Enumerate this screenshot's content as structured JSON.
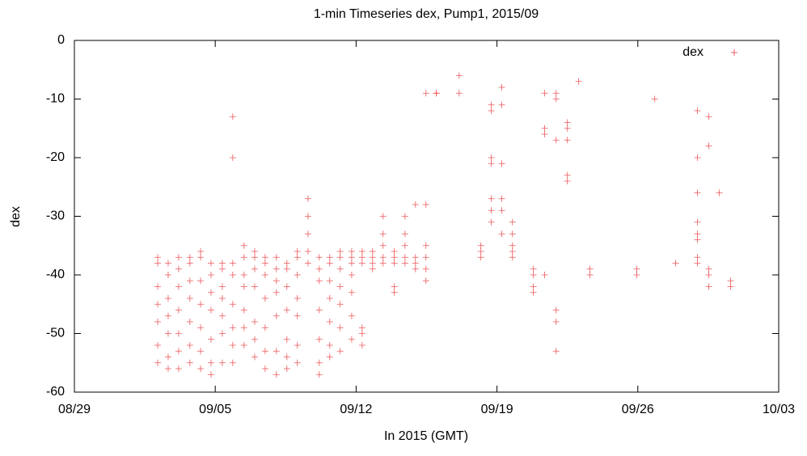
{
  "chart_data": {
    "type": "scatter",
    "title": "1-min Timeseries dex, Pump1, 2015/09",
    "x_label": "In 2015 (GMT)",
    "y_label": "dex",
    "xlim": [
      0,
      35
    ],
    "xticks": [
      {
        "value": 0,
        "label": "08/29"
      },
      {
        "value": 7,
        "label": "09/05"
      },
      {
        "value": 14,
        "label": "09/12"
      },
      {
        "value": 21,
        "label": "09/19"
      },
      {
        "value": 28,
        "label": "09/26"
      },
      {
        "value": 35,
        "label": "10/03"
      }
    ],
    "ylim": [
      -60,
      0
    ],
    "yticks": [
      -60,
      -50,
      -40,
      -30,
      -20,
      -10,
      0
    ],
    "legend": "top-right",
    "series": [
      {
        "name": "dex",
        "color": "#e8383c",
        "x": [
          4.14,
          4.14,
          4.14,
          4.14,
          4.14,
          4.14,
          4.14,
          4.66,
          4.66,
          4.66,
          4.66,
          4.66,
          4.66,
          4.66,
          5.18,
          5.18,
          5.18,
          5.18,
          5.18,
          5.18,
          5.18,
          5.74,
          5.74,
          5.74,
          5.74,
          5.74,
          5.74,
          5.74,
          6.27,
          6.27,
          6.27,
          6.27,
          6.27,
          6.27,
          6.27,
          6.79,
          6.79,
          6.79,
          6.79,
          6.79,
          6.79,
          6.79,
          7.35,
          7.35,
          7.35,
          7.35,
          7.35,
          7.35,
          7.35,
          7.87,
          7.87,
          7.87,
          7.87,
          7.87,
          7.87,
          7.87,
          7.87,
          8.43,
          8.43,
          8.43,
          8.43,
          8.43,
          8.43,
          8.43,
          8.96,
          8.96,
          8.96,
          8.96,
          8.96,
          8.96,
          8.96,
          9.48,
          9.48,
          9.48,
          9.48,
          9.48,
          9.48,
          9.48,
          10.04,
          10.04,
          10.04,
          10.04,
          10.04,
          10.04,
          10.04,
          10.56,
          10.56,
          10.56,
          10.56,
          10.56,
          10.56,
          10.56,
          11.08,
          11.08,
          11.08,
          11.08,
          11.08,
          11.08,
          11.08,
          11.61,
          11.61,
          11.61,
          11.61,
          11.61,
          12.17,
          12.17,
          12.17,
          12.17,
          12.17,
          12.17,
          12.17,
          12.69,
          12.69,
          12.69,
          12.69,
          12.69,
          12.69,
          12.69,
          13.21,
          13.21,
          13.21,
          13.21,
          13.21,
          13.21,
          13.21,
          13.78,
          13.78,
          13.78,
          13.78,
          13.78,
          13.78,
          13.78,
          14.3,
          14.3,
          14.3,
          14.3,
          14.3,
          14.3,
          14.82,
          14.82,
          14.82,
          14.82,
          15.34,
          15.34,
          15.34,
          15.34,
          15.34,
          15.9,
          15.9,
          15.9,
          15.9,
          15.9,
          16.43,
          16.43,
          16.43,
          16.43,
          16.43,
          16.95,
          16.95,
          16.95,
          16.95,
          17.47,
          17.47,
          17.47,
          17.47,
          17.47,
          17.47,
          17.99,
          17.99,
          19.12,
          19.12,
          20.2,
          20.2,
          20.2,
          20.72,
          20.72,
          20.72,
          20.72,
          20.72,
          20.72,
          20.72,
          21.24,
          21.24,
          21.24,
          21.24,
          21.24,
          21.24,
          21.77,
          21.77,
          21.77,
          21.77,
          21.77,
          22.81,
          22.81,
          22.81,
          22.81,
          23.37,
          23.37,
          23.37,
          23.37,
          23.94,
          23.94,
          23.94,
          23.94,
          23.94,
          23.94,
          24.5,
          24.5,
          24.5,
          24.5,
          24.5,
          25.06,
          25.62,
          25.62,
          27.95,
          27.95,
          28.84,
          29.88,
          30.96,
          30.96,
          30.96,
          30.96,
          30.96,
          30.96,
          30.96,
          30.96,
          31.53,
          31.53,
          31.53,
          31.53,
          31.53,
          32.05,
          32.61,
          32.61
        ],
        "values": [
          -37,
          -38,
          -42,
          -45,
          -48,
          -52,
          -55,
          -38,
          -40,
          -44,
          -47,
          -50,
          -54,
          -56,
          -37,
          -39,
          -42,
          -46,
          -50,
          -53,
          -56,
          -37,
          -38,
          -41,
          -44,
          -48,
          -52,
          -55,
          -36,
          -37,
          -41,
          -45,
          -49,
          -53,
          -56,
          -38,
          -40,
          -43,
          -46,
          -51,
          -55,
          -57,
          -38,
          -39,
          -42,
          -44,
          -47,
          -50,
          -55,
          -13,
          -20,
          -38,
          -40,
          -45,
          -49,
          -52,
          -55,
          -35,
          -37,
          -40,
          -42,
          -46,
          -49,
          -52,
          -36,
          -37,
          -39,
          -42,
          -48,
          -51,
          -54,
          -37,
          -38,
          -40,
          -44,
          -49,
          -53,
          -56,
          -37,
          -39,
          -41,
          -43,
          -47,
          -53,
          -57,
          -38,
          -39,
          -42,
          -46,
          -51,
          -54,
          -56,
          -36,
          -37,
          -40,
          -44,
          -47,
          -52,
          -55,
          -27,
          -30,
          -33,
          -36,
          -38,
          -37,
          -39,
          -41,
          -46,
          -51,
          -55,
          -57,
          -37,
          -38,
          -41,
          -44,
          -48,
          -52,
          -54,
          -36,
          -37,
          -39,
          -42,
          -45,
          -49,
          -53,
          -36,
          -37,
          -38,
          -40,
          -43,
          -47,
          -51,
          -36,
          -37,
          -38,
          -49,
          -50,
          -52,
          -36,
          -37,
          -38,
          -39,
          -30,
          -33,
          -35,
          -37,
          -38,
          -36,
          -37,
          -38,
          -42,
          -43,
          -30,
          -33,
          -35,
          -37,
          -38,
          -28,
          -37,
          -38,
          -39,
          -9,
          -28,
          -35,
          -37,
          -39,
          -41,
          -9,
          -9,
          -6,
          -9,
          -35,
          -36,
          -37,
          -11,
          -12,
          -20,
          -21,
          -27,
          -29,
          -31,
          -8,
          -11,
          -21,
          -27,
          -29,
          -33,
          -31,
          -33,
          -35,
          -36,
          -37,
          -39,
          -40,
          -42,
          -43,
          -9,
          -15,
          -16,
          -40,
          -9,
          -10,
          -17,
          -46,
          -48,
          -53,
          -14,
          -15,
          -17,
          -23,
          -24,
          -7,
          -39,
          -40,
          -39,
          -40,
          -10,
          -38,
          -12,
          -20,
          -26,
          -31,
          -33,
          -34,
          -37,
          -38,
          -13,
          -18,
          -39,
          -40,
          -42,
          -26,
          -41,
          -42
        ]
      }
    ]
  }
}
